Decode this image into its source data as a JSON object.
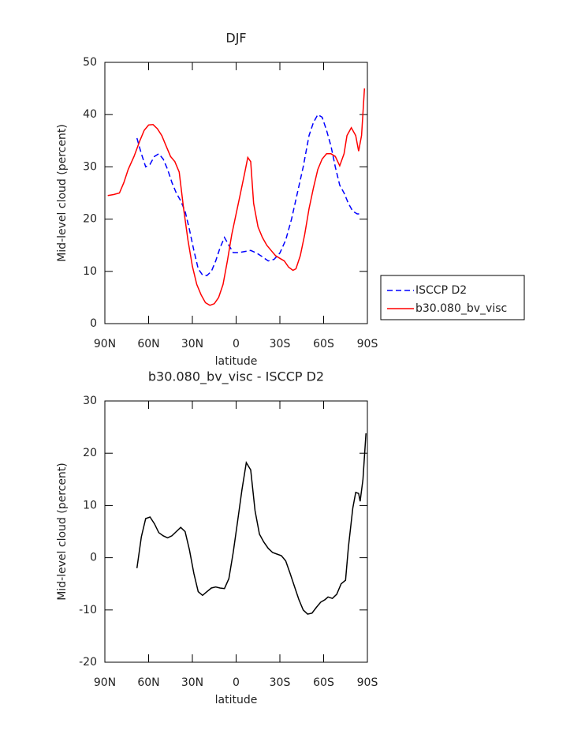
{
  "chart_data": [
    {
      "type": "line",
      "title": "DJF",
      "xlabel": "latitude",
      "ylabel": "Mid-level cloud (percent)",
      "xlim": [
        90,
        -90
      ],
      "xticks": [
        {
          "value": 90,
          "label": "90N"
        },
        {
          "value": 60,
          "label": "60N"
        },
        {
          "value": 30,
          "label": "30N"
        },
        0,
        {
          "value": -30,
          "label": "30S"
        },
        {
          "value": -60,
          "label": "60S"
        },
        {
          "value": -90,
          "label": "90S"
        }
      ],
      "ylim": [
        0,
        50
      ],
      "yticks": [
        0,
        10,
        20,
        30,
        40,
        50
      ],
      "legend": "outside-right",
      "series": [
        {
          "name": "ISCCP D2",
          "color": "#0000ff",
          "linestyle": "dashed",
          "x": [
            68,
            65,
            62,
            59,
            56,
            53,
            50,
            47,
            44,
            41,
            38,
            35,
            32,
            29,
            26,
            23,
            20,
            17,
            14,
            11,
            8,
            5,
            2,
            -2,
            -6,
            -10,
            -14,
            -18,
            -22,
            -26,
            -30,
            -34,
            -38,
            -42,
            -46,
            -50,
            -53,
            -56,
            -59,
            -62,
            -65,
            -68,
            -71,
            -74,
            -77,
            -80,
            -83,
            -86
          ],
          "values": [
            35.5,
            32.5,
            30,
            30.5,
            32,
            32.5,
            31.5,
            29.5,
            27,
            25,
            23.5,
            21.5,
            18,
            14,
            10.5,
            9.3,
            9.2,
            10,
            12,
            14.5,
            16.5,
            15,
            13.6,
            13.6,
            13.8,
            14,
            13.5,
            12.8,
            12,
            12.3,
            13.5,
            16,
            20,
            25,
            30,
            36,
            38.5,
            40,
            39.5,
            37,
            34,
            30,
            26.5,
            25,
            23,
            21.5,
            21,
            21
          ]
        },
        {
          "name": "b30.080_bv_visc",
          "color": "#ff0000",
          "linestyle": "solid",
          "x": [
            88,
            84,
            80,
            77,
            74,
            70,
            66,
            63,
            60,
            57,
            54,
            51,
            48,
            45,
            42,
            39,
            36,
            33,
            30,
            27,
            24,
            21,
            18,
            15,
            12,
            9,
            6,
            3,
            0,
            -3,
            -6,
            -8,
            -10,
            -12,
            -15,
            -18,
            -21,
            -24,
            -27,
            -30,
            -33,
            -36,
            -39,
            -41,
            -44,
            -47,
            -50,
            -53,
            -56,
            -59,
            -62,
            -65,
            -68,
            -71,
            -74,
            -76,
            -79,
            -82,
            -84,
            -86,
            -88
          ],
          "values": [
            24.5,
            24.7,
            25,
            27,
            29.5,
            32,
            35,
            37,
            38,
            38.1,
            37.3,
            36,
            34,
            32,
            31,
            29,
            22,
            16,
            11,
            7.5,
            5.5,
            4,
            3.5,
            3.8,
            5,
            7.5,
            12,
            17,
            21,
            25,
            29,
            31.8,
            31,
            23,
            18.5,
            16.5,
            15,
            14,
            13,
            12.5,
            12,
            10.8,
            10.2,
            10.5,
            13,
            17,
            22,
            26,
            29.5,
            31.5,
            32.5,
            32.5,
            32,
            30.2,
            32.5,
            36,
            37.5,
            36,
            33,
            36,
            45
          ]
        }
      ]
    },
    {
      "type": "line",
      "title": "b30.080_bv_visc - ISCCP D2",
      "xlabel": "latitude",
      "ylabel": "Mid-level cloud (percent)",
      "xlim": [
        90,
        -90
      ],
      "xticks": [
        {
          "value": 90,
          "label": "90N"
        },
        {
          "value": 60,
          "label": "60N"
        },
        {
          "value": 30,
          "label": "30N"
        },
        0,
        {
          "value": -30,
          "label": "30S"
        },
        {
          "value": -60,
          "label": "60S"
        },
        {
          "value": -90,
          "label": "90S"
        }
      ],
      "ylim": [
        -20,
        30
      ],
      "yticks": [
        -20,
        -10,
        0,
        10,
        20,
        30
      ],
      "color": "#000000",
      "x": [
        68,
        65,
        62,
        59,
        56,
        53,
        50,
        47,
        44,
        41,
        38,
        35,
        32,
        29,
        26,
        23,
        20,
        17,
        14,
        11,
        8,
        5,
        2,
        -1,
        -4,
        -7,
        -10,
        -13,
        -16,
        -19,
        -22,
        -25,
        -28,
        -31,
        -34,
        -37,
        -40,
        -43,
        -46,
        -49,
        -52,
        -55,
        -58,
        -61,
        -63,
        -66,
        -69,
        -72,
        -75,
        -77,
        -80,
        -82,
        -84,
        -85,
        -87,
        -89
      ],
      "values": [
        -2,
        4,
        7.5,
        7.8,
        6.5,
        4.8,
        4.2,
        3.8,
        4.2,
        5,
        5.8,
        5,
        1.5,
        -3,
        -6.5,
        -7.2,
        -6.5,
        -5.8,
        -5.6,
        -5.8,
        -5.9,
        -4,
        1,
        7,
        13,
        18.2,
        16.8,
        9,
        4.5,
        3,
        1.8,
        1,
        0.7,
        0.4,
        -0.6,
        -3,
        -5.5,
        -8,
        -10,
        -10.8,
        -10.6,
        -9.5,
        -8.5,
        -8,
        -7.5,
        -7.8,
        -7,
        -5,
        -4.3,
        2,
        9.5,
        12.5,
        12.3,
        10.8,
        15,
        23.8
      ]
    }
  ]
}
